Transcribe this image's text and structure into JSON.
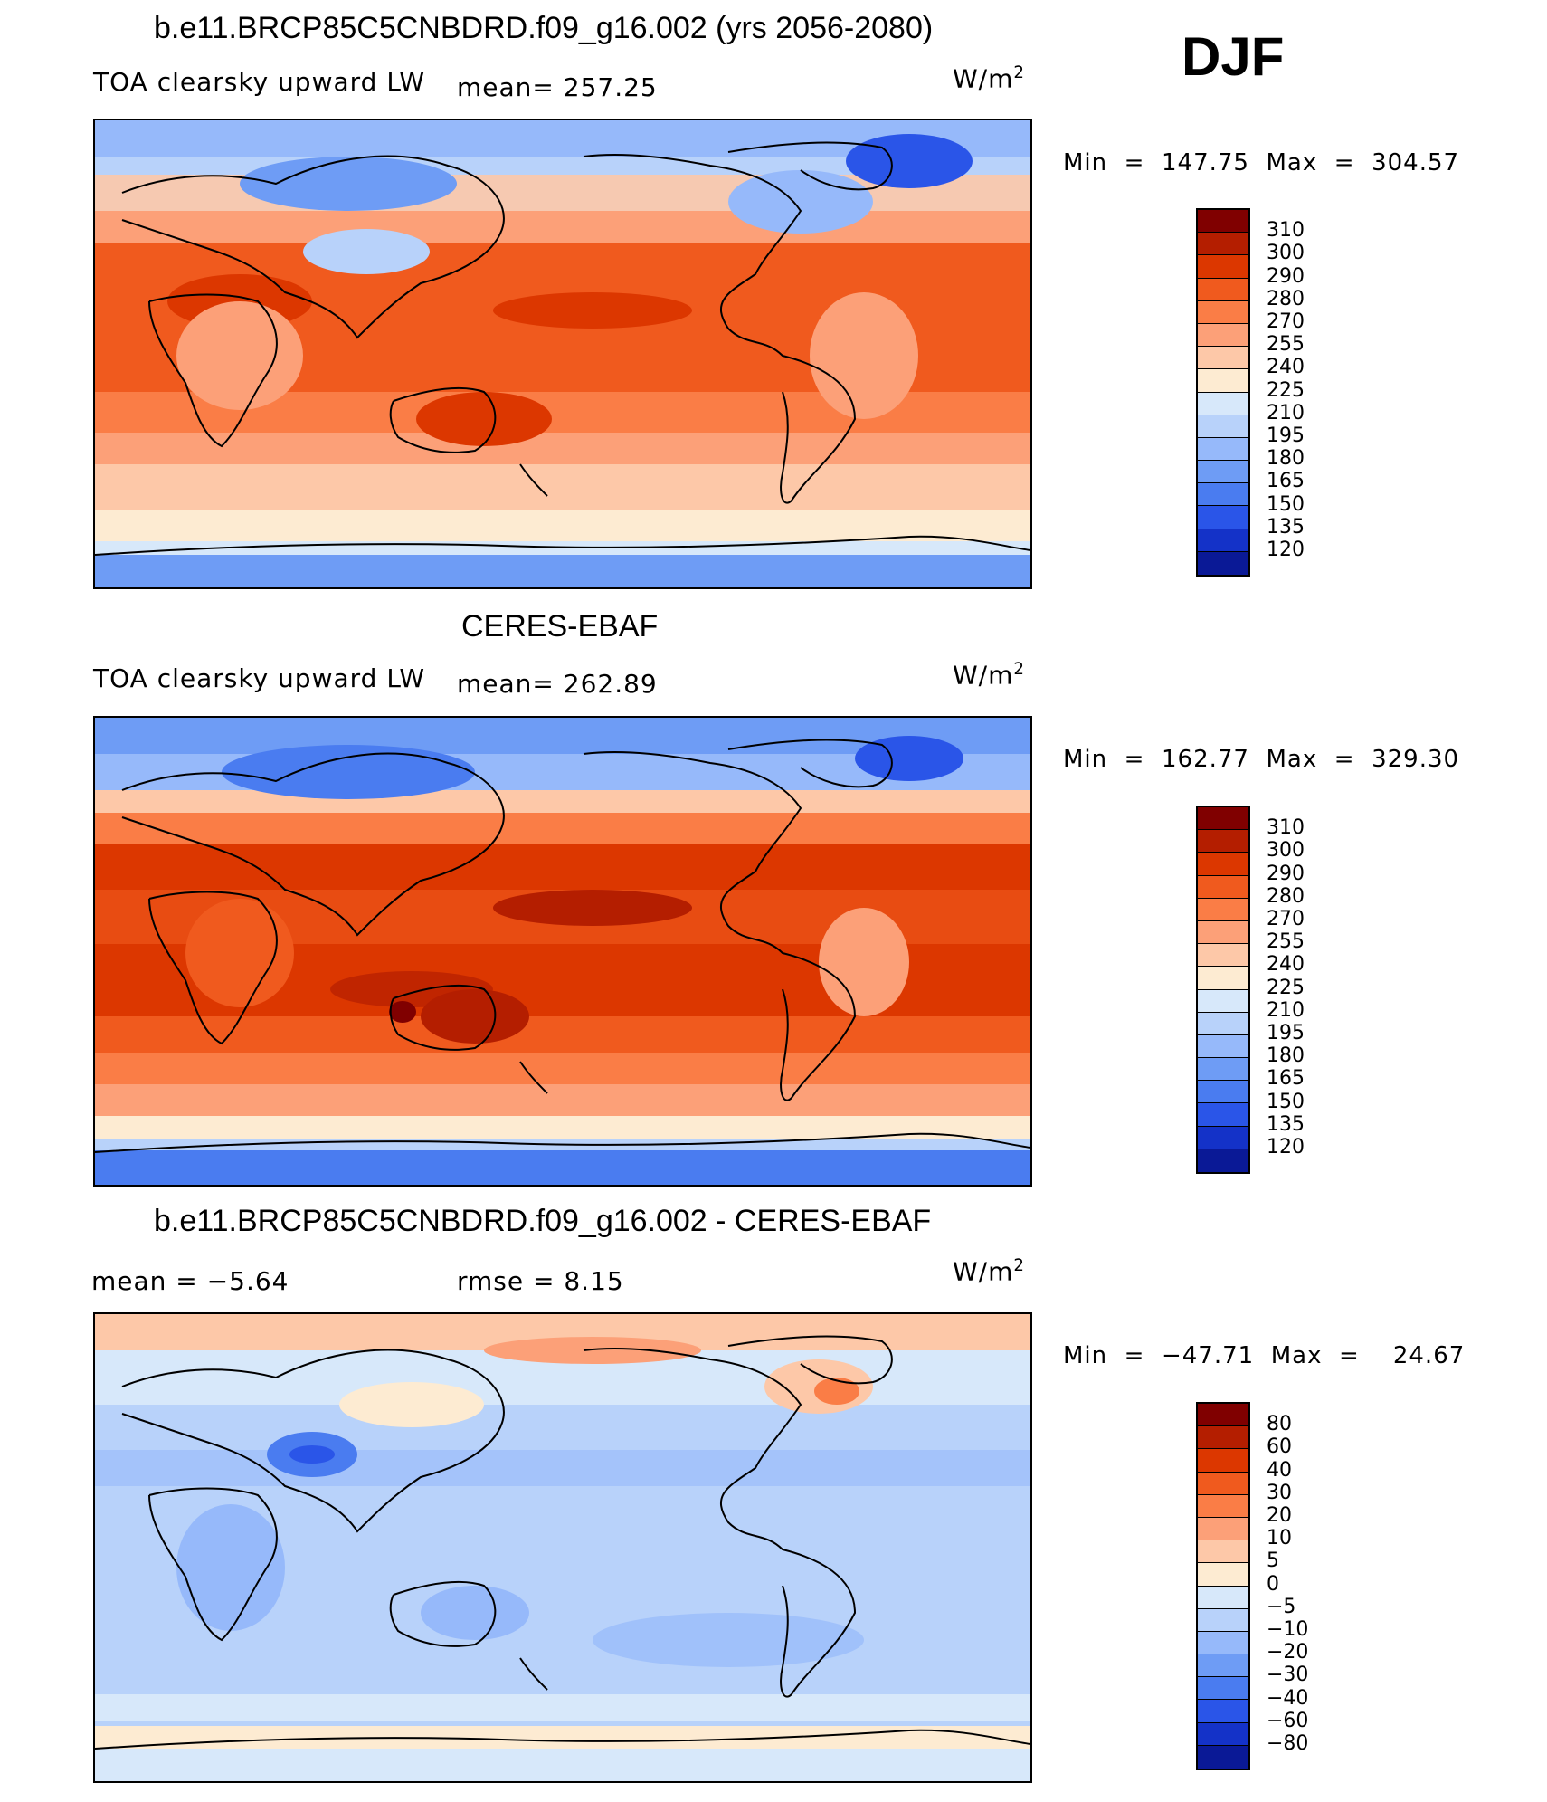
{
  "season": "DJF",
  "panels": [
    {
      "title": "b.e11.BRCP85C5CNBDRD.f09_g16.002 (yrs 2056-2080)",
      "left_label": "TOA clearsky upward LW",
      "stat_label": "mean=  257.25",
      "units": "W/m",
      "units_sup": "2",
      "minmax": "Min  =  147.75  Max  =  304.57",
      "colorbar": {
        "labels": [
          "310",
          "300",
          "290",
          "280",
          "270",
          "255",
          "240",
          "225",
          "210",
          "195",
          "180",
          "165",
          "150",
          "135",
          "120"
        ],
        "colors": [
          "#800000",
          "#b41e00",
          "#dc3700",
          "#f05a1e",
          "#fa7d46",
          "#fca078",
          "#fdc8a8",
          "#fdebd2",
          "#d7e8fa",
          "#b8d2fa",
          "#96b9fa",
          "#6e9cf5",
          "#4a7cf0",
          "#2a55e8",
          "#1432c8",
          "#0a1996"
        ]
      }
    },
    {
      "title": "CERES-EBAF",
      "left_label": "TOA clearsky upward LW",
      "stat_label": "mean=  262.89",
      "units": "W/m",
      "units_sup": "2",
      "minmax": "Min  =  162.77  Max  =  329.30",
      "colorbar": {
        "labels": [
          "310",
          "300",
          "290",
          "280",
          "270",
          "255",
          "240",
          "225",
          "210",
          "195",
          "180",
          "165",
          "150",
          "135",
          "120"
        ],
        "colors": [
          "#800000",
          "#b41e00",
          "#dc3700",
          "#f05a1e",
          "#fa7d46",
          "#fca078",
          "#fdc8a8",
          "#fdebd2",
          "#d7e8fa",
          "#b8d2fa",
          "#96b9fa",
          "#6e9cf5",
          "#4a7cf0",
          "#2a55e8",
          "#1432c8",
          "#0a1996"
        ]
      }
    },
    {
      "title": "b.e11.BRCP85C5CNBDRD.f09_g16.002 - CERES-EBAF",
      "left_label": "mean  =    −5.64",
      "stat_label": "rmse  =     8.15",
      "units": "W/m",
      "units_sup": "2",
      "minmax": "Min  =  −47.71  Max  =    24.67",
      "colorbar": {
        "labels": [
          "80",
          "60",
          "40",
          "30",
          "20",
          "10",
          "5",
          "0",
          "−5",
          "−10",
          "−20",
          "−30",
          "−40",
          "−60",
          "−80"
        ],
        "colors": [
          "#800000",
          "#b41e00",
          "#dc3700",
          "#f05a1e",
          "#fa7d46",
          "#fca078",
          "#fdc8a8",
          "#fdebd2",
          "#d7e8fa",
          "#b8d2fa",
          "#96b9fa",
          "#6e9cf5",
          "#4a7cf0",
          "#2a55e8",
          "#1432c8",
          "#0a1996"
        ]
      }
    }
  ]
}
